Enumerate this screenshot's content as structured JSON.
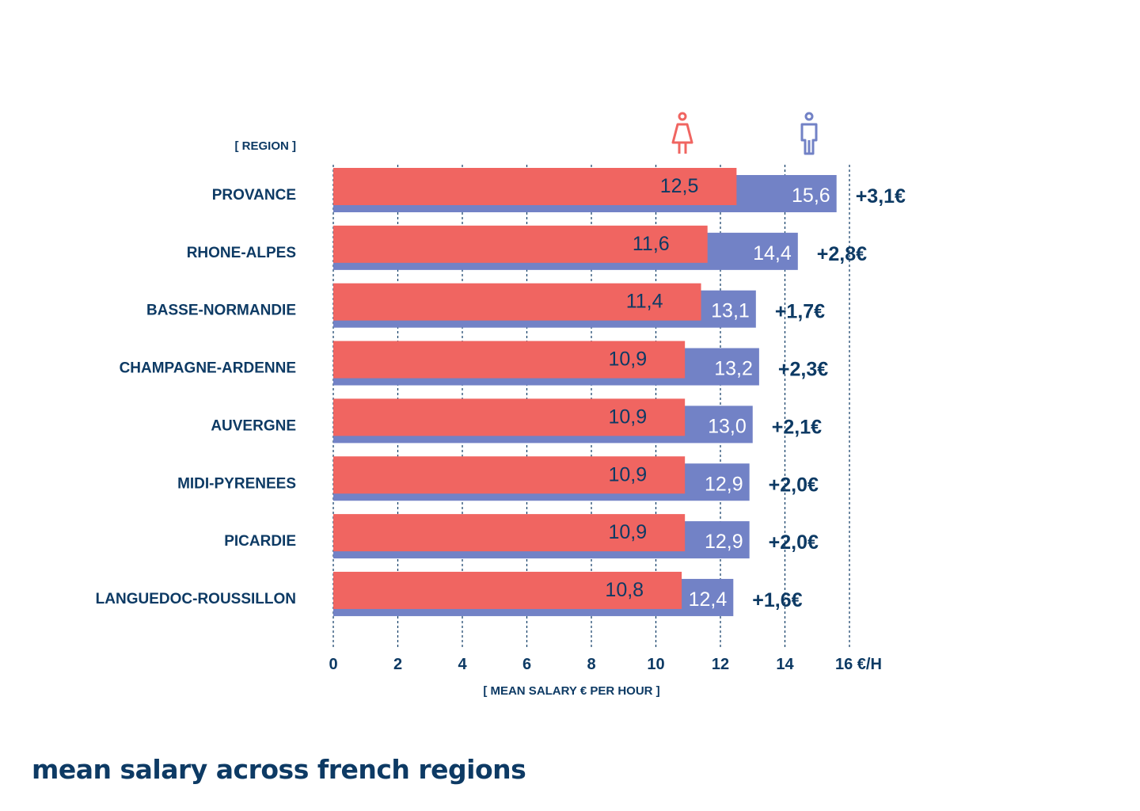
{
  "title": "mean salary across french regions",
  "colors": {
    "women": "#f06561",
    "men": "#7282c6",
    "text": "#0d3a64",
    "grid": "#0d3a64"
  },
  "icons": {
    "women": "woman-icon",
    "men": "man-icon"
  },
  "chart_data": {
    "type": "bar",
    "orientation": "horizontal",
    "title": "",
    "ylabel": "[ REGION ]",
    "xlabel": "[ MEAN SALARY € PER HOUR ]",
    "x_unit": "€/H",
    "xlim": [
      0,
      16
    ],
    "x_ticks": [
      0,
      2,
      4,
      6,
      8,
      10,
      12,
      14,
      16
    ],
    "x_tick_labels": [
      "0",
      "2",
      "4",
      "6",
      "8",
      "10",
      "12",
      "14",
      "16 €/H"
    ],
    "grid": true,
    "categories": [
      "PROVANCE",
      "RHONE-ALPES",
      "BASSE-NORMANDIE",
      "CHAMPAGNE-ARDENNE",
      "AUVERGNE",
      "MIDI-PYRENEES",
      "PICARDIE",
      "LANGUEDOC-ROUSSILLON"
    ],
    "series": [
      {
        "key": "women",
        "values": [
          12.5,
          11.6,
          11.4,
          10.9,
          10.9,
          10.9,
          10.9,
          10.8
        ],
        "labels": [
          "12,5",
          "11,6",
          "11,4",
          "10,9",
          "10,9",
          "10,9",
          "10,9",
          "10,8"
        ]
      },
      {
        "key": "men",
        "values": [
          15.6,
          14.4,
          13.1,
          13.2,
          13.0,
          12.9,
          12.9,
          12.4
        ],
        "labels": [
          "15,6",
          "14,4",
          "13,1",
          "13,2",
          "13,0",
          "12,9",
          "12,9",
          "12,4"
        ]
      }
    ],
    "differences": [
      "+3,1€",
      "+2,8€",
      "+1,7€",
      "+2,3€",
      "+2,1€",
      "+2,0€",
      "+2,0€",
      "+1,6€"
    ]
  }
}
